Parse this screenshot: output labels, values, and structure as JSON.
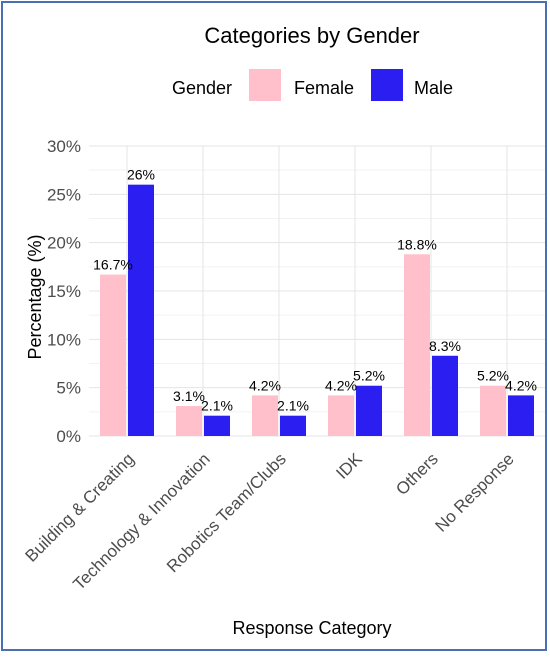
{
  "chart_data": {
    "type": "bar",
    "title": "Categories by Gender",
    "xlabel": "Response Category",
    "ylabel": "Percentage (%)",
    "ylim": [
      0,
      30
    ],
    "yticks": [
      0,
      5,
      10,
      15,
      20,
      25,
      30
    ],
    "ytick_labels": [
      "0%",
      "5%",
      "10%",
      "15%",
      "20%",
      "25%",
      "30%"
    ],
    "legend": {
      "title": "Gender",
      "placement": "top"
    },
    "categories": [
      "Building & Creating",
      "Technology & Innovation",
      "Robotics Team/Clubs",
      "IDK",
      "Others",
      "No Response"
    ],
    "series": [
      {
        "name": "Female",
        "color": "#ffc0cb",
        "values": [
          16.7,
          3.1,
          4.2,
          4.2,
          18.8,
          5.2
        ],
        "labels": [
          "16.7%",
          "3.1%",
          "4.2%",
          "4.2%",
          "18.8%",
          "5.2%"
        ]
      },
      {
        "name": "Male",
        "color": "#2a1ff0",
        "values": [
          26,
          2.1,
          2.1,
          5.2,
          8.3,
          4.2
        ],
        "labels": [
          "26%",
          "2.1%",
          "2.1%",
          "5.2%",
          "8.3%",
          "4.2%"
        ]
      }
    ],
    "grid": true
  }
}
